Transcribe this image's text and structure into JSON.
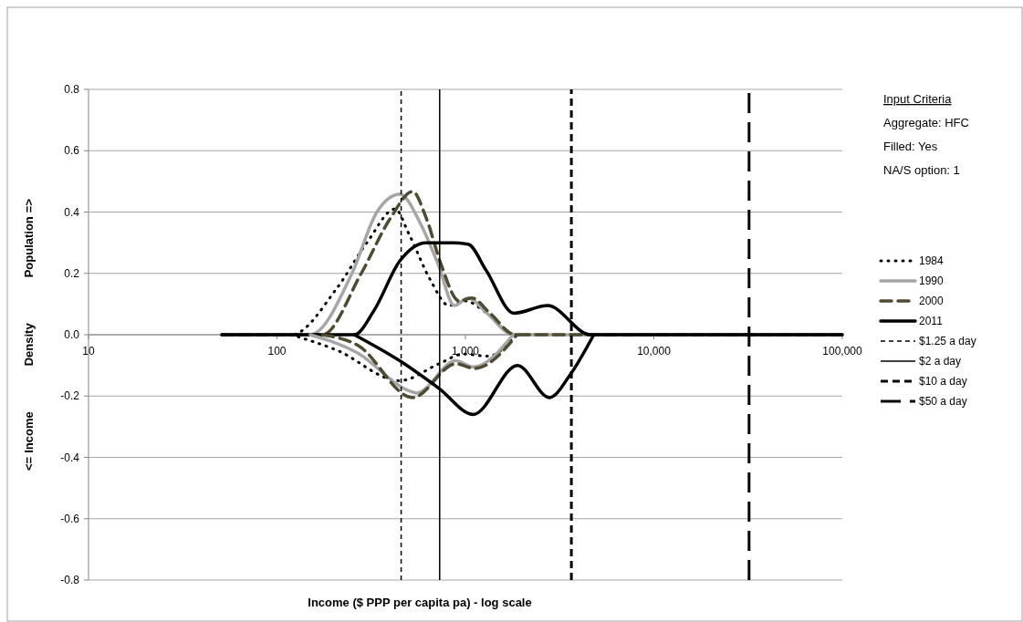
{
  "chart_data": {
    "type": "line",
    "xlabel": "Income ($ PPP per capita pa) - log scale",
    "ylabel": "<= Income Density Population =>",
    "log": "x",
    "xlim": [
      10,
      100000
    ],
    "xticks": [
      10,
      100,
      {
        "value": 1000,
        "label": "1,000"
      },
      {
        "value": 10000,
        "label": "10,000"
      },
      {
        "value": 100000,
        "label": "100,000"
      }
    ],
    "ylim": [
      -0.8,
      0.8
    ],
    "yticks": [
      {
        "value": 0.8,
        "label": "0.8"
      },
      {
        "value": 0.6,
        "label": "0.6"
      },
      {
        "value": 0.4,
        "label": "0.4"
      },
      {
        "value": 0.2,
        "label": "0.2"
      },
      {
        "value": 0,
        "label": "0.0"
      },
      {
        "value": -0.2,
        "label": "-0.2"
      },
      {
        "value": -0.4,
        "label": "-0.4"
      },
      {
        "value": -0.6,
        "label": "-0.6"
      },
      {
        "value": -0.8,
        "label": "-0.8"
      }
    ],
    "grid": "y",
    "legend": "right",
    "marker": "none",
    "series": [
      {
        "name": "1984",
        "color": "#000000",
        "line_style": "dotted",
        "x": [
          51,
          119,
          207,
          300,
          424,
          500,
          650,
          818,
          1000,
          1300,
          1808,
          100000
        ],
        "values": [
          0,
          0,
          0.15,
          0.3,
          0.41,
          0.33,
          0.18,
          0.095,
          0.11,
          0.07,
          0,
          0
        ]
      },
      {
        "name": "1990",
        "color": "#a6a6a6",
        "line_style": "solid",
        "x": [
          51,
          150,
          250,
          339,
          448,
          580,
          716,
          875,
          1035,
          1300,
          1800,
          100000
        ],
        "values": [
          0,
          0,
          0.2,
          0.4,
          0.458,
          0.36,
          0.23,
          0.095,
          0.12,
          0.07,
          0,
          0
        ]
      },
      {
        "name": "2000",
        "color": "#4f4a30",
        "line_style": "dashed",
        "x": [
          51,
          174,
          280,
          400,
          525,
          620,
          742,
          925,
          1081,
          1350,
          1840,
          100000
        ],
        "values": [
          0,
          0,
          0.2,
          0.38,
          0.467,
          0.38,
          0.23,
          0.11,
          0.12,
          0.07,
          0,
          0
        ]
      },
      {
        "name": "2011",
        "color": "#000000",
        "line_style": "solid",
        "x": [
          51,
          257,
          328,
          448,
          617,
          865,
          1035,
          1288,
          1808,
          2730,
          4600,
          100000
        ],
        "values": [
          0,
          0,
          0.08,
          0.24,
          0.3,
          0.3,
          0.295,
          0.21,
          0.07,
          0.095,
          0,
          0
        ]
      },
      {
        "color": "#000000",
        "line_style": "dotted",
        "x": [
          119,
          207,
          448,
          724,
          977,
          1320,
          1850
        ],
        "values": [
          0,
          -0.05,
          -0.15,
          -0.095,
          -0.063,
          -0.07,
          0
        ]
      },
      {
        "color": "#a6a6a6",
        "line_style": "solid",
        "x": [
          150,
          269,
          490,
          550,
          890,
          1100,
          1790
        ],
        "values": [
          0,
          -0.06,
          -0.18,
          -0.19,
          -0.085,
          -0.105,
          0
        ]
      },
      {
        "color": "#4f4a30",
        "line_style": "dashed",
        "x": [
          175,
          269,
          525,
          890,
          1120,
          1880
        ],
        "values": [
          0,
          -0.035,
          -0.205,
          -0.095,
          -0.11,
          0
        ]
      },
      {
        "color": "#000000",
        "line_style": "solid",
        "x": [
          257,
          448,
          724,
          1100,
          1890,
          2790,
          3600,
          4800
        ],
        "values": [
          0,
          -0.085,
          -0.175,
          -0.26,
          -0.1,
          -0.205,
          -0.13,
          0
        ]
      },
      {
        "name": "$1.25 a day",
        "color": "#000000",
        "line_style": "dashed",
        "x": [
          456,
          456
        ],
        "values": [
          -0.8,
          0.8
        ]
      },
      {
        "name": "$2 a day",
        "color": "#000000",
        "line_style": "solid",
        "x": [
          730,
          730
        ],
        "values": [
          -0.8,
          0.8
        ]
      },
      {
        "name": "$10 a day",
        "color": "#000000",
        "line_style": "dashed",
        "x": [
          3650,
          3650
        ],
        "values": [
          -0.8,
          0.8
        ]
      },
      {
        "name": "$50 a day",
        "color": "#000000",
        "line_style": "dashed",
        "x": [
          32000,
          32000
        ],
        "values": [
          -0.8,
          0.8
        ]
      }
    ],
    "annotations": [
      "Input Criteria",
      "Aggregate: HFC",
      "Filled: Yes",
      "NA/S option: 1"
    ]
  }
}
